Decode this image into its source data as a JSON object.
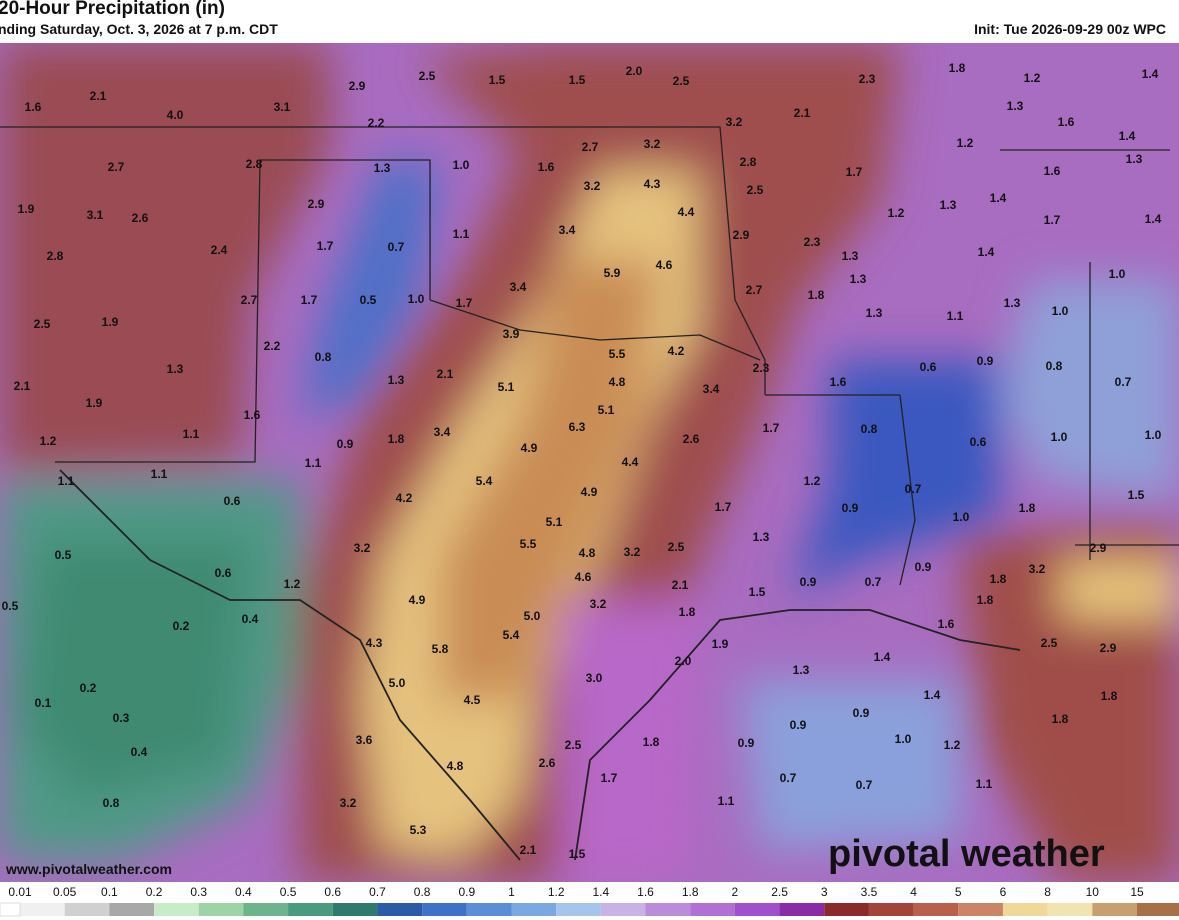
{
  "header": {
    "title": "20-Hour Precipitation (in)",
    "subtitle": "nding Saturday, Oct. 3, 2026 at 7 p.m. CDT",
    "init": "Init: Tue 2026-09-29 00z WPC"
  },
  "map": {
    "watermark": "www.pivotalweather.com",
    "logo": "pivotal weather",
    "labels": [
      "1.6",
      "2.1",
      "4.0",
      "3.1",
      "2.9",
      "2.5",
      "1.5",
      "1.5",
      "2.0",
      "2.5",
      "2.3",
      "1.8",
      "1.2",
      "1.4",
      "2.1",
      "3.2",
      "1.3",
      "1.6",
      "1.4",
      "2.2",
      "2.7",
      "3.2",
      "1.2",
      "1.3",
      "2.7",
      "2.8",
      "1.3",
      "1.0",
      "1.6",
      "2.8",
      "1.7",
      "1.6",
      "1.9",
      "3.1",
      "2.6",
      "2.9",
      "3.2",
      "4.3",
      "2.5",
      "1.4",
      "4.4",
      "1.2",
      "1.3",
      "1.7",
      "1.4",
      "3.4",
      "1.1",
      "1.7",
      "0.7",
      "2.4",
      "2.8",
      "2.9",
      "2.3",
      "1.3",
      "1.4",
      "5.9",
      "4.6",
      "1.3",
      "1.0",
      "2.7",
      "1.7",
      "0.5",
      "1.0",
      "1.7",
      "3.4",
      "2.7",
      "1.8",
      "1.3",
      "1.0",
      "2.5",
      "1.9",
      "1.3",
      "1.1",
      "3.9",
      "2.2",
      "0.8",
      "5.5",
      "4.2",
      "0.9",
      "0.8",
      "2.3",
      "0.6",
      "1.3",
      "2.1",
      "1.3",
      "5.1",
      "4.8",
      "3.4",
      "1.6",
      "0.7",
      "2.1",
      "1.9",
      "5.1",
      "1.6",
      "1.7",
      "1.2",
      "1.1",
      "0.9",
      "1.8",
      "3.4",
      "6.3",
      "2.6",
      "0.8",
      "0.6",
      "1.0",
      "1.0",
      "4.9",
      "4.4",
      "1.1",
      "1.1",
      "1.1",
      "5.4",
      "4.9",
      "1.2",
      "0.7",
      "1.5",
      "0.6",
      "4.2",
      "1.7",
      "0.9",
      "1.0",
      "1.8",
      "5.1",
      "3.2",
      "5.5",
      "4.8",
      "3.2",
      "2.5",
      "1.3",
      "0.5",
      "2.9",
      "0.6",
      "4.6",
      "0.9",
      "1.2",
      "0.9",
      "0.7",
      "2.1",
      "1.8",
      "3.2",
      "1.5",
      "0.5",
      "4.9",
      "3.2",
      "1.8",
      "1.8",
      "5.0",
      "0.2",
      "0.4",
      "1.6",
      "5.4",
      "1.9",
      "2.5",
      "2.9",
      "4.3",
      "5.8",
      "2.0",
      "1.4",
      "1.3",
      "5.0",
      "0.2",
      "3.0",
      "1.4",
      "1.8",
      "0.1",
      "0.3",
      "4.5",
      "1.8",
      "0.9",
      "0.9",
      "3.6",
      "1.8",
      "2.5",
      "0.9",
      "1.0",
      "1.2",
      "0.4",
      "4.8",
      "2.6",
      "1.7",
      "0.7",
      "0.7",
      "1.1",
      "3.2",
      "0.8",
      "1.1",
      "5.3",
      "2.1",
      "1.5"
    ]
  },
  "legend": {
    "labels": [
      "0.01",
      "0.05",
      "0.1",
      "0.2",
      "0.3",
      "0.4",
      "0.5",
      "0.6",
      "0.7",
      "0.8",
      "0.9",
      "1",
      "1.2",
      "1.4",
      "1.6",
      "1.8",
      "2",
      "2.5",
      "3",
      "3.5",
      "4",
      "5",
      "6",
      "8",
      "10",
      "15"
    ]
  }
}
